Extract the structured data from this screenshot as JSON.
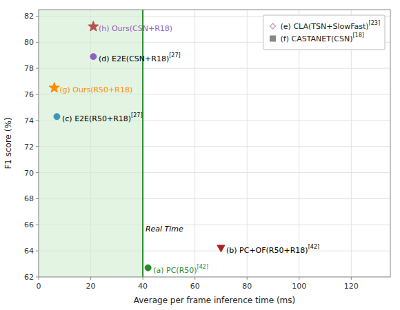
{
  "chart_data": {
    "type": "scatter",
    "xlabel": "Average per frame inference time (ms)",
    "ylabel": "F1 score (%)",
    "xlim": [
      0,
      135
    ],
    "ylim": [
      62,
      82.5
    ],
    "xticks": [
      0,
      20,
      40,
      60,
      80,
      100,
      120
    ],
    "yticks": [
      62,
      64,
      66,
      68,
      70,
      72,
      74,
      76,
      78,
      80,
      82
    ],
    "grid": true,
    "legend": "upper right",
    "points": [
      {
        "label": "(a) PC(R50)",
        "ref": "[42]",
        "x": 42,
        "y": 62.7,
        "color": "#2a8a2a",
        "marker": "circle",
        "label_color": "#2a8a2a"
      },
      {
        "label": "(b) PC+OF(R50+R18)",
        "ref": "[42]",
        "x": 70,
        "y": 64.2,
        "color": "#aa2222",
        "marker": "triangle-down",
        "label_color": "#000000"
      },
      {
        "label": "(c) E2E(R50+R18)",
        "ref": "[27]",
        "x": 7,
        "y": 74.3,
        "color": "#3a9ab5",
        "marker": "circle",
        "label_color": "#000000"
      },
      {
        "label": "(d) E2E(CSN+R18)",
        "ref": "[27]",
        "x": 21,
        "y": 78.9,
        "color": "#9060c0",
        "marker": "circle",
        "label_color": "#000000"
      },
      {
        "label": "(g) Ours(R50+R18)",
        "ref": "",
        "x": 6,
        "y": 76.5,
        "color": "#ff8c00",
        "marker": "star",
        "label_color": "#ff8c00"
      },
      {
        "label": "(h) Ours(CSN+R18)",
        "ref": "",
        "x": 21,
        "y": 81.2,
        "color": "#b85050",
        "marker": "star",
        "label_color": "#9060c0"
      }
    ],
    "series": [
      {
        "name": "(e) CLA(TSN+SlowFast)",
        "ref": "[23]",
        "color": "#c8a0c8",
        "marker": "diamond",
        "x": [],
        "values": []
      },
      {
        "name": "(f) CASTANET(CSN)",
        "ref": "[18]",
        "color": "#888888",
        "marker": "square",
        "x": [],
        "values": []
      }
    ],
    "vline": {
      "x": 40,
      "color": "#228B22"
    },
    "shading_color": "#d0ecd0",
    "annotations": [
      {
        "text": "Real Time",
        "x": 41,
        "y": 65.5
      }
    ]
  }
}
